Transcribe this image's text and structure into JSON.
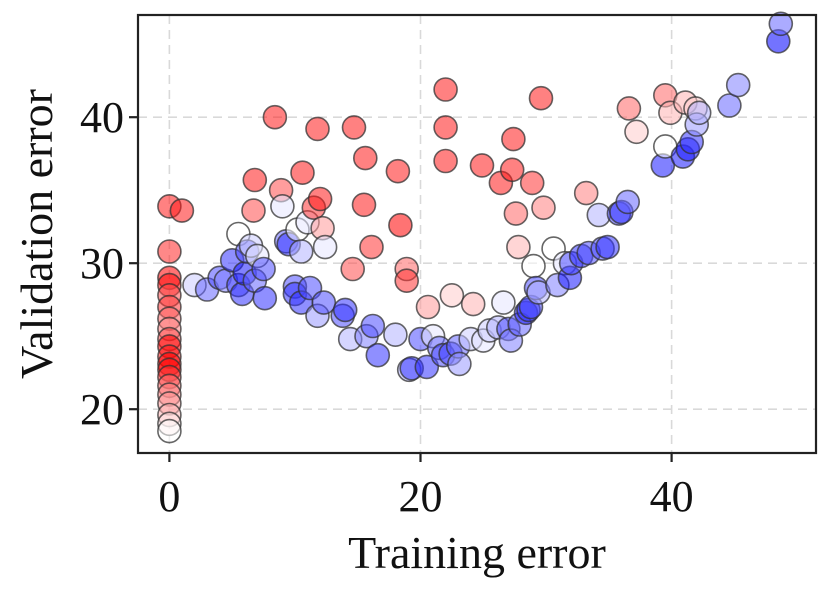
{
  "chart_data": {
    "type": "scatter",
    "title": "",
    "xlabel": "Training error",
    "ylabel": "Validation error",
    "xlim": [
      -2.5,
      51.5
    ],
    "ylim": [
      17,
      47
    ],
    "xticks": [
      0,
      20,
      40
    ],
    "yticks": [
      20,
      30,
      40
    ],
    "xtick_labels": [
      "0",
      "20",
      "40"
    ],
    "ytick_labels": [
      "20",
      "30",
      "40"
    ],
    "grid": true,
    "point_opacity": 0.55,
    "colormap": "bwr",
    "colormap_note": "color value c ranges from -1 (deep blue) through 0 (white) to +1 (deep red)",
    "series": [
      {
        "name": "",
        "points": [
          {
            "x": 0.0,
            "y": 33.9,
            "c": 0.9
          },
          {
            "x": 1.0,
            "y": 33.6,
            "c": 0.9
          },
          {
            "x": 0.0,
            "y": 30.8,
            "c": 0.85
          },
          {
            "x": 0.0,
            "y": 29.0,
            "c": 1.0
          },
          {
            "x": 0.0,
            "y": 28.5,
            "c": 0.95
          },
          {
            "x": 0.0,
            "y": 27.8,
            "c": 0.7
          },
          {
            "x": 0.0,
            "y": 27.0,
            "c": 0.8
          },
          {
            "x": 0.0,
            "y": 26.2,
            "c": 0.6
          },
          {
            "x": 0.0,
            "y": 25.5,
            "c": 0.5
          },
          {
            "x": 0.0,
            "y": 24.8,
            "c": 0.7
          },
          {
            "x": 0.0,
            "y": 24.3,
            "c": 1.0
          },
          {
            "x": 0.0,
            "y": 23.6,
            "c": 0.9
          },
          {
            "x": 0.0,
            "y": 23.1,
            "c": 1.0
          },
          {
            "x": 0.0,
            "y": 22.7,
            "c": 1.0
          },
          {
            "x": 0.0,
            "y": 22.2,
            "c": 0.8
          },
          {
            "x": 0.0,
            "y": 21.6,
            "c": 0.6
          },
          {
            "x": 0.0,
            "y": 21.0,
            "c": 0.5
          },
          {
            "x": 0.0,
            "y": 20.4,
            "c": 0.4
          },
          {
            "x": 0.0,
            "y": 19.6,
            "c": 0.3
          },
          {
            "x": 0.0,
            "y": 19.0,
            "c": 0.1
          },
          {
            "x": 0.0,
            "y": 18.5,
            "c": 0.0
          },
          {
            "x": 2.0,
            "y": 28.5,
            "c": -0.2
          },
          {
            "x": 3.0,
            "y": 28.2,
            "c": -0.6
          },
          {
            "x": 4.0,
            "y": 29.0,
            "c": -0.7
          },
          {
            "x": 4.5,
            "y": 28.8,
            "c": -0.5
          },
          {
            "x": 5.0,
            "y": 30.2,
            "c": -0.8
          },
          {
            "x": 5.5,
            "y": 28.5,
            "c": -0.7
          },
          {
            "x": 5.5,
            "y": 32.0,
            "c": 0.0
          },
          {
            "x": 5.8,
            "y": 27.9,
            "c": -0.8
          },
          {
            "x": 6.0,
            "y": 29.3,
            "c": -0.9
          },
          {
            "x": 6.2,
            "y": 30.8,
            "c": -0.7
          },
          {
            "x": 6.5,
            "y": 31.2,
            "c": -0.2
          },
          {
            "x": 6.8,
            "y": 28.8,
            "c": -0.6
          },
          {
            "x": 7.0,
            "y": 30.5,
            "c": -0.1
          },
          {
            "x": 7.5,
            "y": 29.6,
            "c": -0.7
          },
          {
            "x": 7.6,
            "y": 27.6,
            "c": -0.8
          },
          {
            "x": 6.7,
            "y": 33.6,
            "c": 0.7
          },
          {
            "x": 6.8,
            "y": 35.7,
            "c": 0.9
          },
          {
            "x": 8.4,
            "y": 40.0,
            "c": 0.9
          },
          {
            "x": 8.9,
            "y": 35.0,
            "c": 0.7
          },
          {
            "x": 9.0,
            "y": 33.9,
            "c": -0.1
          },
          {
            "x": 9.3,
            "y": 31.5,
            "c": -0.6
          },
          {
            "x": 9.5,
            "y": 31.3,
            "c": -0.8
          },
          {
            "x": 10.0,
            "y": 28.4,
            "c": -0.7
          },
          {
            "x": 10.0,
            "y": 27.9,
            "c": -0.8
          },
          {
            "x": 10.2,
            "y": 32.3,
            "c": 0.0
          },
          {
            "x": 10.5,
            "y": 30.8,
            "c": -0.3
          },
          {
            "x": 10.5,
            "y": 27.3,
            "c": -0.8
          },
          {
            "x": 10.6,
            "y": 36.2,
            "c": 0.9
          },
          {
            "x": 11.0,
            "y": 32.8,
            "c": -0.1
          },
          {
            "x": 11.2,
            "y": 28.3,
            "c": -0.7
          },
          {
            "x": 11.5,
            "y": 33.8,
            "c": 0.8
          },
          {
            "x": 11.8,
            "y": 26.4,
            "c": -0.4
          },
          {
            "x": 11.8,
            "y": 39.2,
            "c": 0.9
          },
          {
            "x": 12.0,
            "y": 34.4,
            "c": 0.9
          },
          {
            "x": 12.2,
            "y": 32.4,
            "c": 0.4
          },
          {
            "x": 12.4,
            "y": 31.1,
            "c": -0.1
          },
          {
            "x": 12.3,
            "y": 27.3,
            "c": -0.7
          },
          {
            "x": 13.8,
            "y": 26.4,
            "c": -0.7
          },
          {
            "x": 14.0,
            "y": 26.8,
            "c": -0.8
          },
          {
            "x": 14.4,
            "y": 24.8,
            "c": -0.3
          },
          {
            "x": 14.6,
            "y": 29.6,
            "c": 0.7
          },
          {
            "x": 14.7,
            "y": 39.3,
            "c": 0.9
          },
          {
            "x": 15.5,
            "y": 34.0,
            "c": 0.9
          },
          {
            "x": 15.6,
            "y": 37.2,
            "c": 0.9
          },
          {
            "x": 15.7,
            "y": 25.0,
            "c": -0.5
          },
          {
            "x": 16.1,
            "y": 31.1,
            "c": 0.8
          },
          {
            "x": 16.2,
            "y": 25.7,
            "c": -0.7
          },
          {
            "x": 16.6,
            "y": 23.7,
            "c": -0.8
          },
          {
            "x": 18.0,
            "y": 25.1,
            "c": -0.3
          },
          {
            "x": 18.2,
            "y": 36.3,
            "c": 0.9
          },
          {
            "x": 18.4,
            "y": 32.6,
            "c": 1.0
          },
          {
            "x": 18.9,
            "y": 29.6,
            "c": 0.6
          },
          {
            "x": 18.9,
            "y": 28.8,
            "c": 0.8
          },
          {
            "x": 19.1,
            "y": 22.7,
            "c": -0.3
          },
          {
            "x": 19.3,
            "y": 22.8,
            "c": -0.8
          },
          {
            "x": 20.0,
            "y": 24.8,
            "c": -0.7
          },
          {
            "x": 20.5,
            "y": 22.9,
            "c": -0.8
          },
          {
            "x": 20.6,
            "y": 27.0,
            "c": 0.4
          },
          {
            "x": 21.0,
            "y": 25.0,
            "c": -0.1
          },
          {
            "x": 21.5,
            "y": 24.2,
            "c": -0.6
          },
          {
            "x": 21.8,
            "y": 23.7,
            "c": -0.7
          },
          {
            "x": 22.0,
            "y": 41.9,
            "c": 0.9
          },
          {
            "x": 22.0,
            "y": 39.3,
            "c": 0.9
          },
          {
            "x": 22.0,
            "y": 37.0,
            "c": 0.9
          },
          {
            "x": 22.4,
            "y": 23.8,
            "c": -0.7
          },
          {
            "x": 22.5,
            "y": 27.8,
            "c": 0.2
          },
          {
            "x": 23.0,
            "y": 24.3,
            "c": -0.6
          },
          {
            "x": 23.1,
            "y": 23.1,
            "c": -0.4
          },
          {
            "x": 24.0,
            "y": 24.8,
            "c": -0.2
          },
          {
            "x": 24.2,
            "y": 27.2,
            "c": 0.3
          },
          {
            "x": 24.9,
            "y": 36.7,
            "c": 0.9
          },
          {
            "x": 25.0,
            "y": 24.7,
            "c": -0.1
          },
          {
            "x": 25.5,
            "y": 25.4,
            "c": -0.2
          },
          {
            "x": 26.2,
            "y": 25.6,
            "c": -0.3
          },
          {
            "x": 26.4,
            "y": 35.5,
            "c": 0.9
          },
          {
            "x": 26.6,
            "y": 27.3,
            "c": -0.1
          },
          {
            "x": 27.0,
            "y": 25.5,
            "c": -0.7
          },
          {
            "x": 27.2,
            "y": 24.7,
            "c": -0.5
          },
          {
            "x": 27.3,
            "y": 36.4,
            "c": 0.9
          },
          {
            "x": 27.4,
            "y": 38.5,
            "c": 0.9
          },
          {
            "x": 27.6,
            "y": 33.4,
            "c": 0.6
          },
          {
            "x": 27.8,
            "y": 31.1,
            "c": 0.3
          },
          {
            "x": 27.9,
            "y": 25.8,
            "c": -0.6
          },
          {
            "x": 28.4,
            "y": 26.6,
            "c": -0.9
          },
          {
            "x": 28.6,
            "y": 26.8,
            "c": -0.8
          },
          {
            "x": 28.8,
            "y": 27.0,
            "c": -0.7
          },
          {
            "x": 28.9,
            "y": 35.5,
            "c": 0.8
          },
          {
            "x": 29.0,
            "y": 29.8,
            "c": 0.0
          },
          {
            "x": 29.2,
            "y": 28.3,
            "c": -0.7
          },
          {
            "x": 29.4,
            "y": 28.0,
            "c": -0.3
          },
          {
            "x": 29.6,
            "y": 41.3,
            "c": 0.9
          },
          {
            "x": 29.8,
            "y": 33.8,
            "c": 0.5
          },
          {
            "x": 30.6,
            "y": 31.0,
            "c": 0.0
          },
          {
            "x": 30.9,
            "y": 28.5,
            "c": -0.5
          },
          {
            "x": 31.5,
            "y": 30.0,
            "c": -0.1
          },
          {
            "x": 31.9,
            "y": 29.0,
            "c": -0.9
          },
          {
            "x": 32.0,
            "y": 30.0,
            "c": -0.7
          },
          {
            "x": 32.8,
            "y": 30.5,
            "c": -0.8
          },
          {
            "x": 33.2,
            "y": 34.8,
            "c": 0.5
          },
          {
            "x": 33.4,
            "y": 30.7,
            "c": -0.7
          },
          {
            "x": 34.2,
            "y": 33.3,
            "c": -0.3
          },
          {
            "x": 34.5,
            "y": 31.0,
            "c": -0.7
          },
          {
            "x": 34.9,
            "y": 31.1,
            "c": -0.8
          },
          {
            "x": 35.8,
            "y": 33.4,
            "c": -0.7
          },
          {
            "x": 36.0,
            "y": 33.5,
            "c": -0.8
          },
          {
            "x": 36.5,
            "y": 34.2,
            "c": -0.6
          },
          {
            "x": 36.6,
            "y": 40.6,
            "c": 0.6
          },
          {
            "x": 37.2,
            "y": 39.0,
            "c": 0.2
          },
          {
            "x": 39.3,
            "y": 36.7,
            "c": -0.9
          },
          {
            "x": 39.5,
            "y": 41.5,
            "c": 0.6
          },
          {
            "x": 39.5,
            "y": 38.0,
            "c": 0.0
          },
          {
            "x": 39.9,
            "y": 40.3,
            "c": 0.3
          },
          {
            "x": 40.9,
            "y": 37.3,
            "c": -0.9
          },
          {
            "x": 41.1,
            "y": 41.0,
            "c": 0.3
          },
          {
            "x": 41.3,
            "y": 37.8,
            "c": -0.9
          },
          {
            "x": 41.6,
            "y": 38.3,
            "c": -0.8
          },
          {
            "x": 41.9,
            "y": 40.6,
            "c": 0.2
          },
          {
            "x": 42.0,
            "y": 39.5,
            "c": -0.4
          },
          {
            "x": 42.2,
            "y": 40.3,
            "c": -0.3
          },
          {
            "x": 44.6,
            "y": 40.8,
            "c": -0.6
          },
          {
            "x": 45.3,
            "y": 42.2,
            "c": -0.5
          },
          {
            "x": 48.5,
            "y": 45.2,
            "c": -1.0
          },
          {
            "x": 48.7,
            "y": 46.4,
            "c": -0.6
          }
        ]
      }
    ]
  }
}
